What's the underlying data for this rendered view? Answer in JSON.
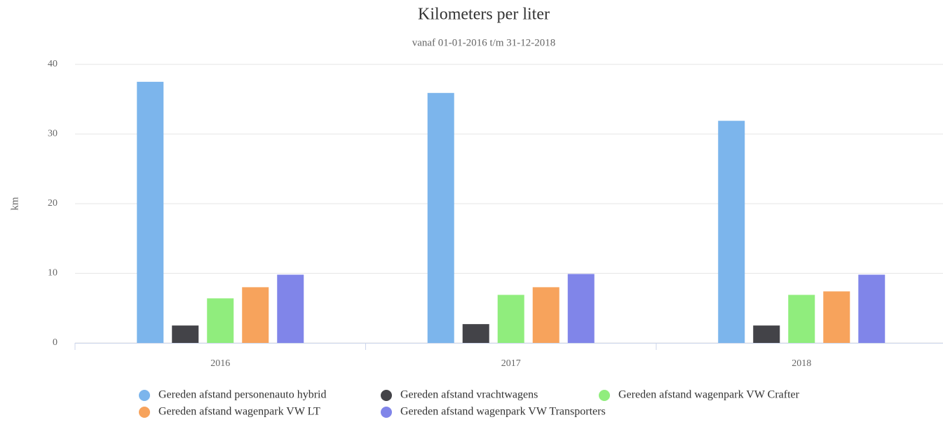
{
  "chart_data": {
    "type": "bar",
    "title": "Kilometers per liter",
    "subtitle": "vanaf 01-01-2016 t/m 31-12-2018",
    "y_label": "km",
    "categories": [
      "2016",
      "2017",
      "2018"
    ],
    "series": [
      {
        "name": "Gereden afstand personenauto hybrid",
        "color": "#7cb5ec",
        "values": [
          37.5,
          35.9,
          31.9
        ]
      },
      {
        "name": "Gereden afstand vrachtwagens",
        "color": "#434348",
        "values": [
          2.5,
          2.7,
          2.5
        ]
      },
      {
        "name": "Gereden afstand wagenpark VW Crafter",
        "color": "#90ed7d",
        "values": [
          6.4,
          6.9,
          6.9
        ]
      },
      {
        "name": "Gereden afstand wagenpark VW LT",
        "color": "#f7a35c",
        "values": [
          8.0,
          8.0,
          7.4
        ]
      },
      {
        "name": "Gereden afstand wagenpark VW Transporters",
        "color": "#8085e9",
        "values": [
          9.8,
          9.9,
          9.8
        ]
      }
    ],
    "ylim": [
      0,
      40
    ],
    "yticks": [
      0,
      10,
      20,
      30,
      40
    ],
    "grid": true
  }
}
